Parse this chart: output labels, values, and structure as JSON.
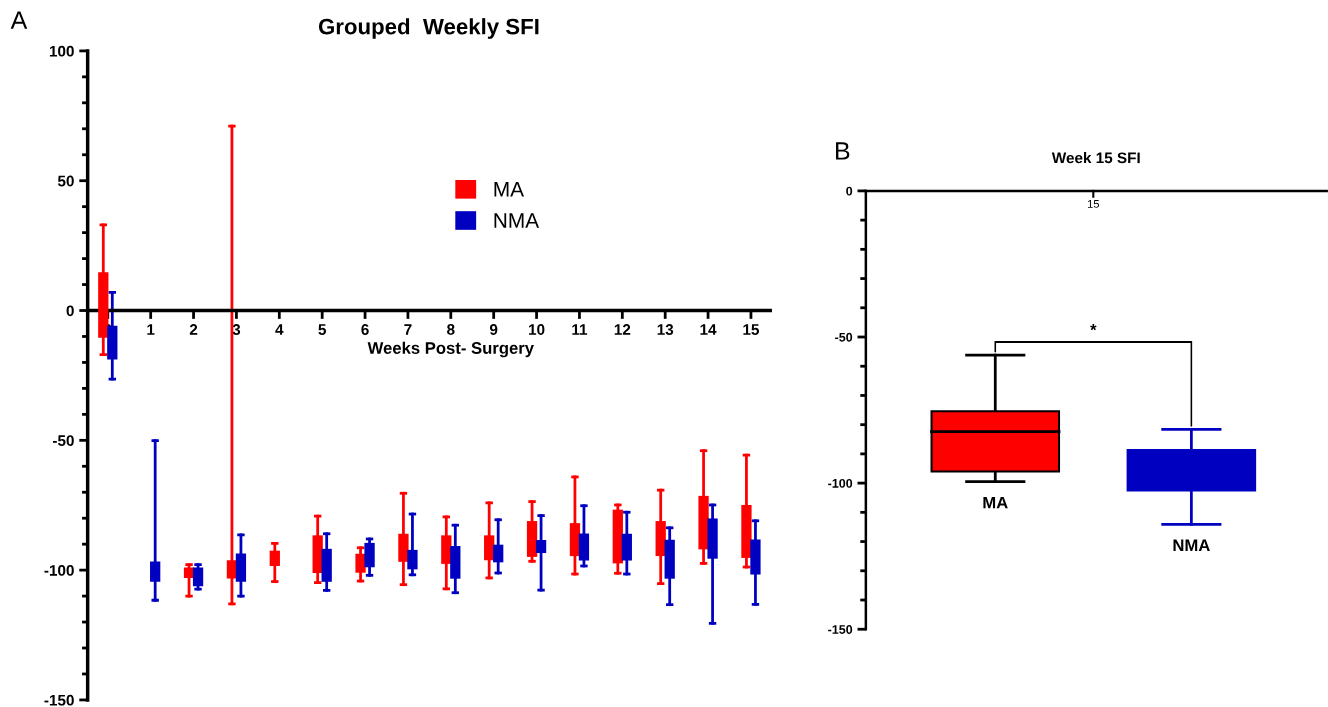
{
  "chart_data": [
    {
      "type": "box",
      "title": "Grouped  Weekly SFI",
      "xlabel": "Weeks Post- Surgery",
      "annotations": [
        "A"
      ],
      "categories": [
        "0",
        "1",
        "2",
        "3",
        "4",
        "5",
        "6",
        "7",
        "8",
        "9",
        "10",
        "11",
        "12",
        "13",
        "14",
        "15"
      ],
      "ylim": [
        -150,
        100
      ],
      "yticks": [
        -150,
        -100,
        -50,
        0,
        50,
        100
      ],
      "legend": "top",
      "grid": false,
      "series": [
        {
          "name": "MA",
          "color": "#ff0000",
          "boxes": [
            {
              "low": -17,
              "q1": -10.5,
              "q3": 14.7,
              "high": 33
            },
            null,
            {
              "low": -110,
              "q1": -103,
              "q3": -99,
              "high": -97.9
            },
            {
              "low": -113,
              "q1": -103.2,
              "q3": -96.2,
              "high": 71
            },
            {
              "low": -104.4,
              "q1": -98.4,
              "q3": -92.5,
              "high": -89.7
            },
            {
              "low": -104.8,
              "q1": -101.1,
              "q3": -86.6,
              "high": -79.2
            },
            {
              "low": -104.2,
              "q1": -101,
              "q3": -93.7,
              "high": -91.4
            },
            {
              "low": -105.6,
              "q1": -96.8,
              "q3": -86,
              "high": -70.4
            },
            {
              "low": -107.2,
              "q1": -97.6,
              "q3": -86.6,
              "high": -79.5
            },
            {
              "low": -103,
              "q1": -96.2,
              "q3": -86.6,
              "high": -74.1
            },
            {
              "low": -96.6,
              "q1": -94.9,
              "q3": -81.1,
              "high": -73.6
            },
            {
              "low": -101.5,
              "q1": -94.6,
              "q3": -81.9,
              "high": -64.1
            },
            {
              "low": -101.2,
              "q1": -97.4,
              "q3": -76.7,
              "high": -74.9
            },
            {
              "low": -105.2,
              "q1": -94.6,
              "q3": -81.1,
              "high": -69.2
            },
            {
              "low": -97.4,
              "q1": -92,
              "q3": -71.4,
              "high": -54
            },
            {
              "low": -98.8,
              "q1": -95.3,
              "q3": -74.9,
              "high": -55.7
            }
          ]
        },
        {
          "name": "NMA",
          "color": "#0000c0",
          "boxes": [
            {
              "low": -26.4,
              "q1": -18.9,
              "q3": -5.9,
              "high": 7
            },
            {
              "low": -111.6,
              "q1": -104.5,
              "q3": -96.7,
              "high": -50.1
            },
            {
              "low": -107.3,
              "q1": -106.2,
              "q3": -99,
              "high": -97.9
            },
            {
              "low": -110,
              "q1": -104.5,
              "q3": -93.6,
              "high": -86.4
            },
            null,
            {
              "low": -107.8,
              "q1": -104.5,
              "q3": -91.8,
              "high": -86
            },
            {
              "low": -102,
              "q1": -98.9,
              "q3": -89.5,
              "high": -88
            },
            {
              "low": -101.8,
              "q1": -99.7,
              "q3": -92.2,
              "high": -78.4
            },
            {
              "low": -108.7,
              "q1": -103.3,
              "q3": -90.7,
              "high": -82.7
            },
            {
              "low": -101.1,
              "q1": -97,
              "q3": -90.2,
              "high": -80.6
            },
            {
              "low": -107.7,
              "q1": -93.4,
              "q3": -88.4,
              "high": -79
            },
            {
              "low": -98.4,
              "q1": -96.3,
              "q3": -85.9,
              "high": -75.2
            },
            {
              "low": -101.5,
              "q1": -96.3,
              "q3": -86,
              "high": -77.7
            },
            {
              "low": -113.3,
              "q1": -103.3,
              "q3": -88.3,
              "high": -83.7
            },
            {
              "low": -120.5,
              "q1": -95.6,
              "q3": -80.1,
              "high": -74.9
            },
            {
              "low": -113.2,
              "q1": -101.7,
              "q3": -88.2,
              "high": -81
            }
          ]
        }
      ]
    },
    {
      "type": "box",
      "title": "Week 15 SFI",
      "annotations": [
        "B",
        "15",
        "*"
      ],
      "categories": [
        "MA",
        "NMA"
      ],
      "ylim": [
        -150,
        0
      ],
      "yticks": [
        -150,
        -100,
        -50,
        0
      ],
      "grid": false,
      "series": [
        {
          "color": "#ff0000",
          "boxes": [
            {
              "low": -99.5,
              "q1": -96,
              "median": -82.4,
              "q3": -75.4,
              "high": -56.2
            },
            null
          ]
        },
        {
          "color": "#0000c0",
          "boxes": [
            null,
            {
              "low": -114.1,
              "q1": -102.5,
              "q3": -88.7,
              "high": -81.6
            }
          ]
        }
      ]
    }
  ]
}
